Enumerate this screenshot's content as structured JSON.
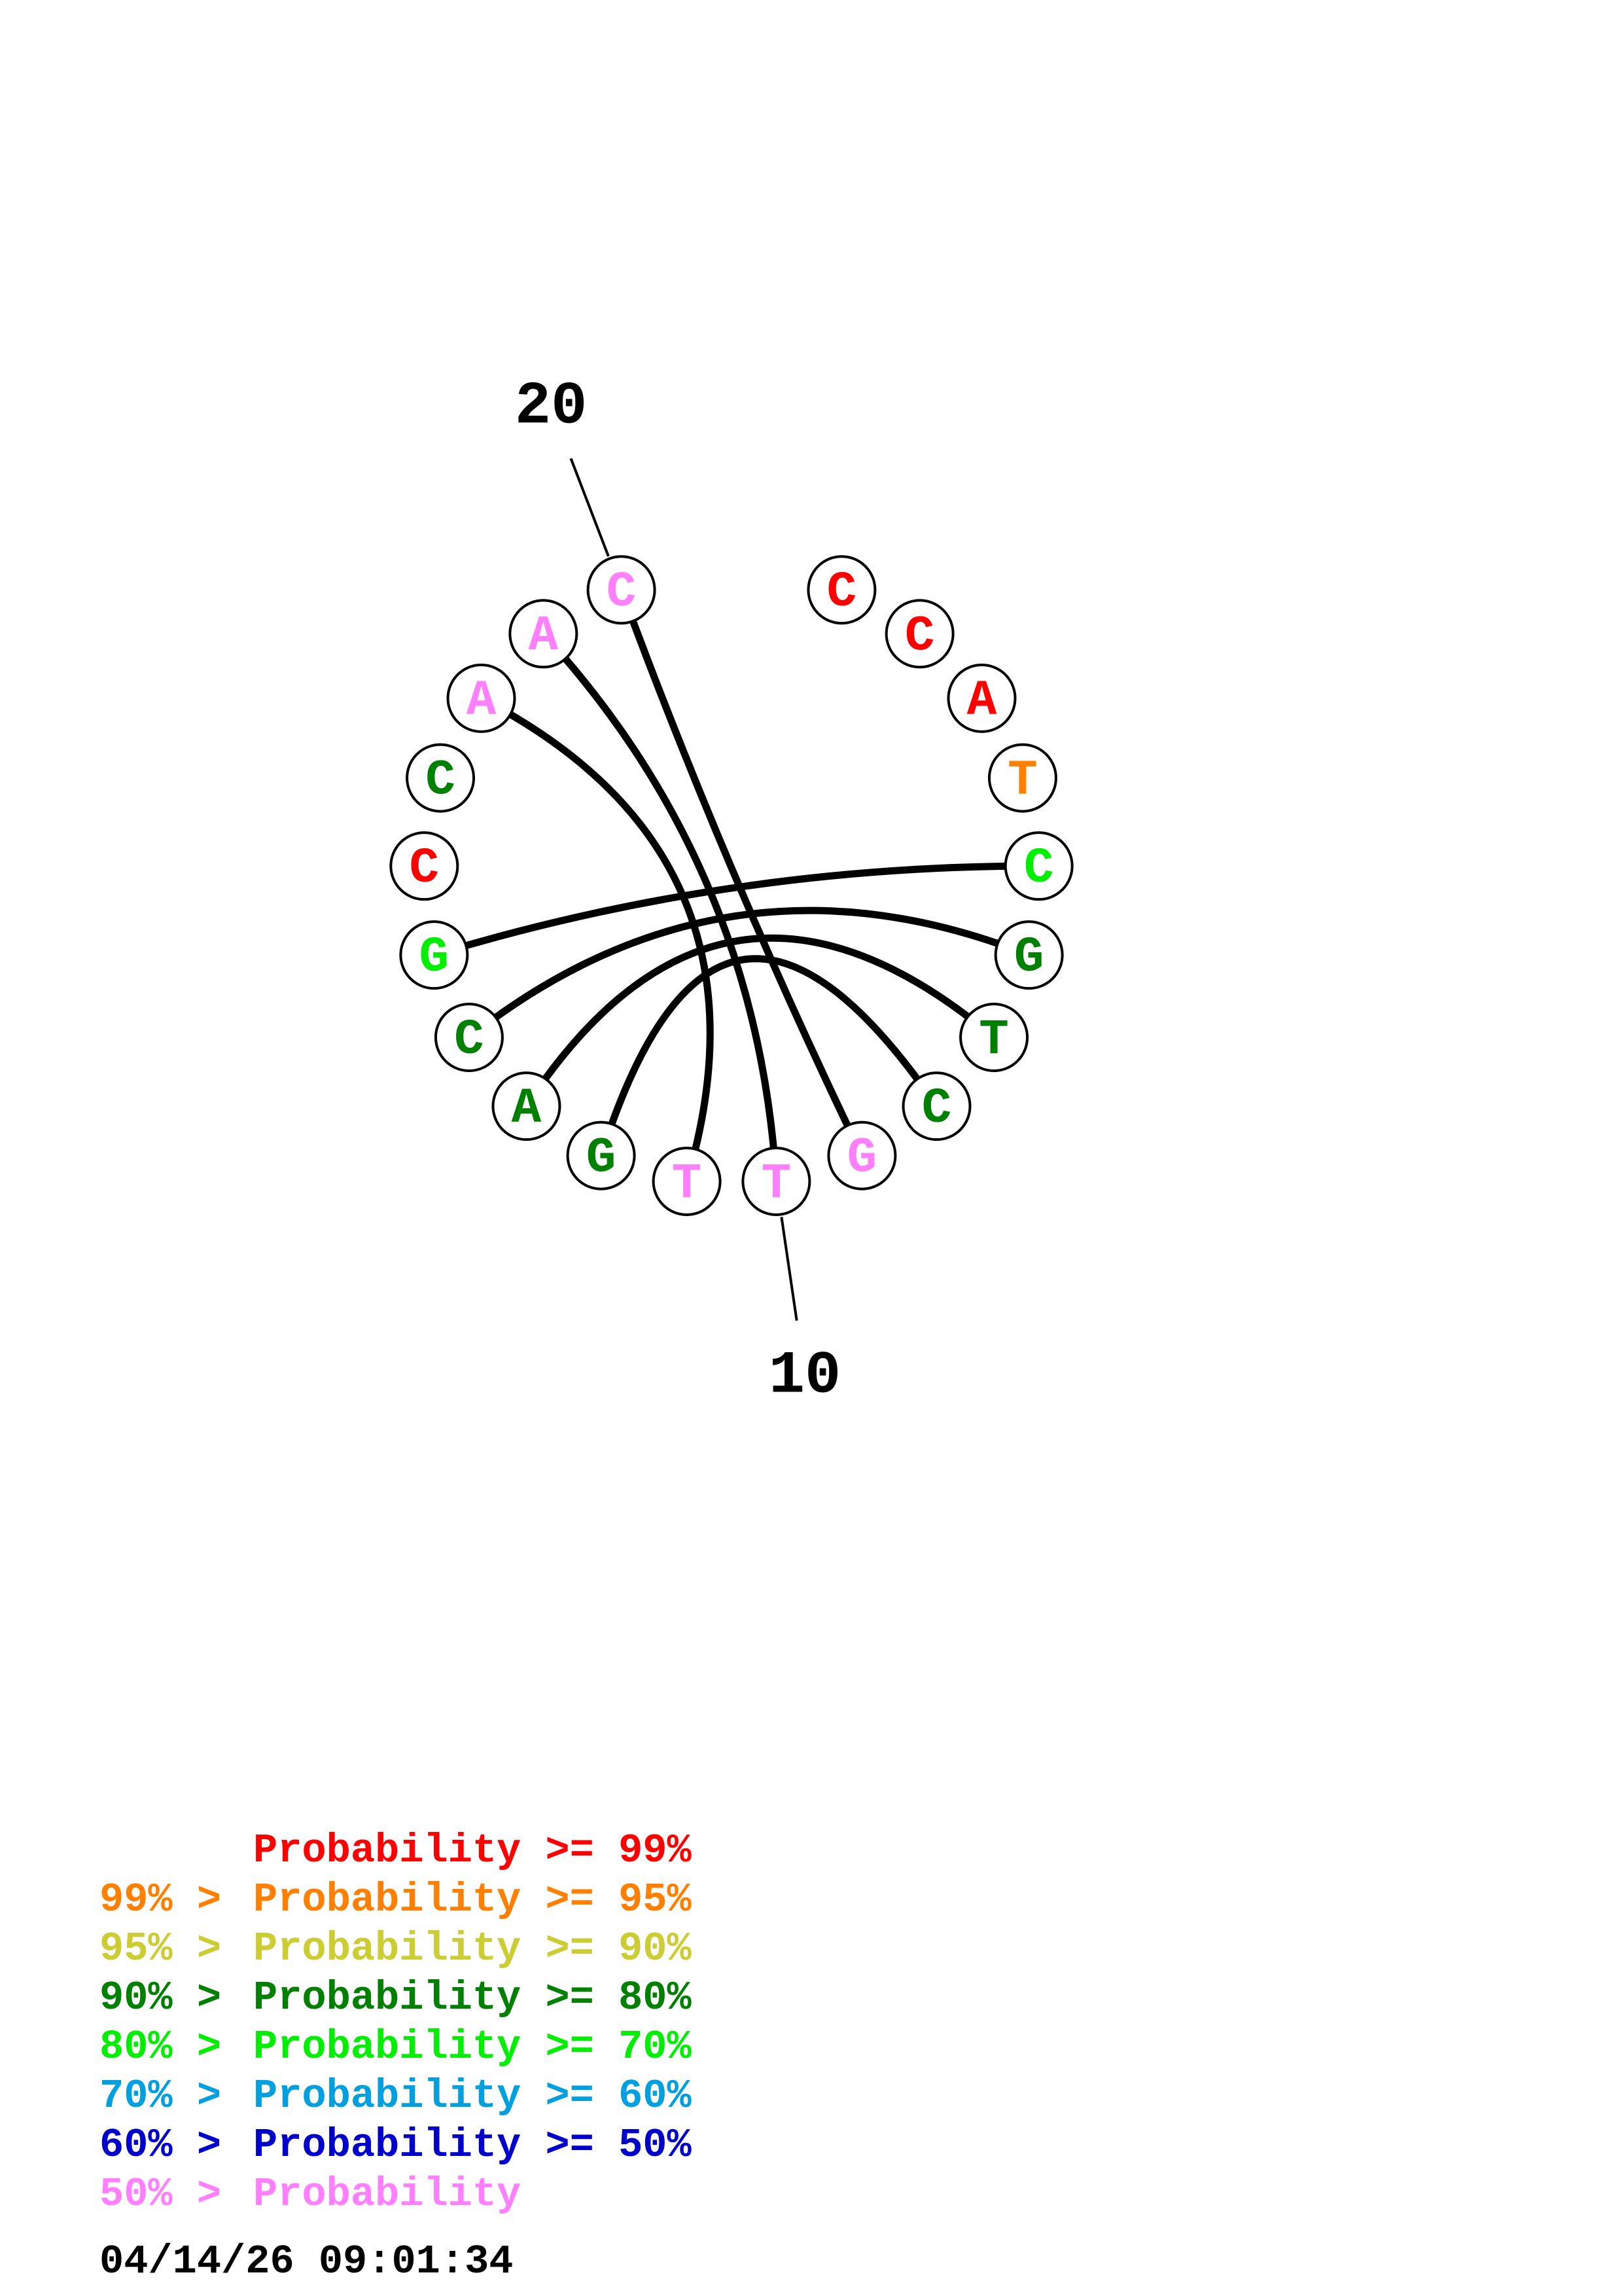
{
  "structure": {
    "bases": [
      {
        "n": 1,
        "letter": "C",
        "color": "#ff0000"
      },
      {
        "n": 2,
        "letter": "C",
        "color": "#ff0000"
      },
      {
        "n": 3,
        "letter": "A",
        "color": "#ff0000"
      },
      {
        "n": 4,
        "letter": "T",
        "color": "#ff8000"
      },
      {
        "n": 5,
        "letter": "C",
        "color": "#00ee00"
      },
      {
        "n": 6,
        "letter": "G",
        "color": "#008000"
      },
      {
        "n": 7,
        "letter": "T",
        "color": "#008000"
      },
      {
        "n": 8,
        "letter": "C",
        "color": "#008000"
      },
      {
        "n": 9,
        "letter": "G",
        "color": "#ff80ff"
      },
      {
        "n": 10,
        "letter": "T",
        "color": "#ff80ff"
      },
      {
        "n": 11,
        "letter": "T",
        "color": "#ff80ff"
      },
      {
        "n": 12,
        "letter": "G",
        "color": "#008000"
      },
      {
        "n": 13,
        "letter": "A",
        "color": "#008000"
      },
      {
        "n": 14,
        "letter": "C",
        "color": "#008000"
      },
      {
        "n": 15,
        "letter": "G",
        "color": "#00ee00"
      },
      {
        "n": 16,
        "letter": "C",
        "color": "#ff0000"
      },
      {
        "n": 17,
        "letter": "C",
        "color": "#008000"
      },
      {
        "n": 18,
        "letter": "A",
        "color": "#ff80ff"
      },
      {
        "n": 19,
        "letter": "A",
        "color": "#ff80ff"
      },
      {
        "n": 20,
        "letter": "C",
        "color": "#ff80ff"
      }
    ],
    "pairs": [
      [
        5,
        15
      ],
      [
        6,
        14
      ],
      [
        7,
        13
      ],
      [
        8,
        12
      ],
      [
        9,
        20
      ],
      [
        10,
        19
      ],
      [
        11,
        18
      ]
    ],
    "index_labels": [
      {
        "base": 20,
        "text": "20"
      },
      {
        "base": 10,
        "text": "10"
      }
    ]
  },
  "legend": [
    {
      "range": "",
      "label": "Probability >= 99%",
      "color": "#ff0000"
    },
    {
      "range": "99% >",
      "label": "Probability >= 95%",
      "color": "#ff8000"
    },
    {
      "range": "95% >",
      "label": "Probability >= 90%",
      "color": "#cccc33"
    },
    {
      "range": "90% >",
      "label": "Probability >= 80%",
      "color": "#008000"
    },
    {
      "range": "80% >",
      "label": "Probability >= 70%",
      "color": "#00ee00"
    },
    {
      "range": "70% >",
      "label": "Probability >= 60%",
      "color": "#00a0e0"
    },
    {
      "range": "60% >",
      "label": "Probability >= 50%",
      "color": "#0000cc"
    },
    {
      "range": "50% >",
      "label": "Probability",
      "color": "#ff80ff"
    }
  ],
  "timestamp": "04/14/26 09:01:34"
}
